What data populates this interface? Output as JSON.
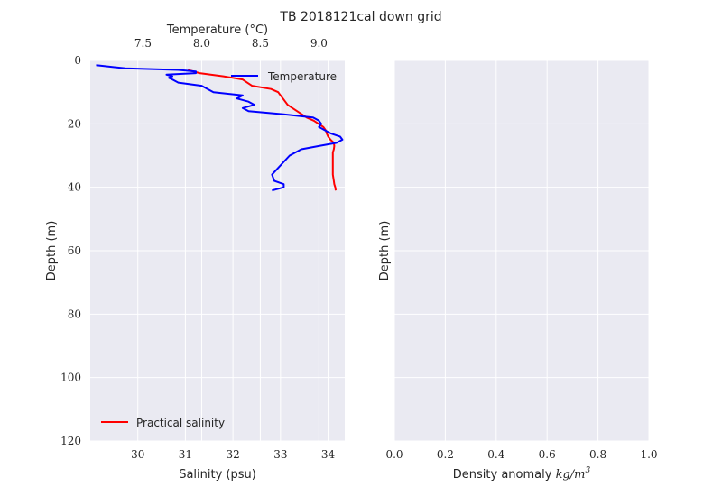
{
  "figure": {
    "suptitle": "TB 2018121cal down grid"
  },
  "chart_data": [
    {
      "type": "line",
      "panel": "left",
      "title": "",
      "ylabel": "Depth (m)",
      "y_inverted": true,
      "ylim": [
        0,
        120
      ],
      "yticks": [
        "0",
        "20",
        "40",
        "60",
        "80",
        "100",
        "120"
      ],
      "grid": true,
      "bottom_axis": {
        "label": "Salinity (psu)",
        "lim": [
          29.0,
          34.35
        ],
        "ticks": [
          "30",
          "31",
          "32",
          "33",
          "34"
        ]
      },
      "top_axis": {
        "label": "Temperature (°C)",
        "lim": [
          7.05,
          9.22
        ],
        "ticks": [
          "7.5",
          "8.0",
          "8.5",
          "9.0"
        ]
      },
      "series": [
        {
          "name": "Practical salinity",
          "axis": "bottom",
          "color": "#ff0000",
          "legend_position": "lower-left",
          "depth": [
            3,
            4,
            5,
            6,
            7,
            8,
            9,
            10,
            11,
            12,
            13,
            14,
            15,
            16,
            17,
            18,
            19,
            20,
            21,
            22,
            23,
            24,
            25,
            26,
            27,
            28,
            29,
            30,
            32,
            34,
            36,
            38,
            39,
            40,
            41
          ],
          "values": [
            31.05,
            31.3,
            31.8,
            32.2,
            32.3,
            32.4,
            32.8,
            32.95,
            33.0,
            33.05,
            33.1,
            33.15,
            33.25,
            33.35,
            33.45,
            33.55,
            33.7,
            33.8,
            33.9,
            33.95,
            33.97,
            34.0,
            34.05,
            34.12,
            34.13,
            34.12,
            34.1,
            34.1,
            34.1,
            34.1,
            34.1,
            34.12,
            34.13,
            34.15,
            34.16
          ]
        },
        {
          "name": "Temperature",
          "axis": "top",
          "color": "#0000ff",
          "legend_position": "upper-right",
          "depth": [
            1.5,
            2.5,
            3,
            3.5,
            4,
            4.5,
            5,
            5.5,
            6,
            7,
            8,
            9,
            10,
            11,
            12,
            13,
            14,
            15,
            16,
            17,
            18,
            19,
            20,
            21,
            22,
            23,
            24,
            25,
            26,
            27,
            28,
            29,
            30,
            32,
            34,
            36,
            38,
            39,
            40,
            41
          ],
          "values": [
            7.1,
            7.35,
            7.8,
            7.95,
            7.95,
            7.7,
            7.75,
            7.72,
            7.75,
            7.8,
            8.0,
            8.05,
            8.1,
            8.35,
            8.3,
            8.4,
            8.45,
            8.35,
            8.4,
            8.7,
            8.95,
            9.0,
            9.02,
            9.0,
            9.05,
            9.1,
            9.18,
            9.2,
            9.15,
            9.0,
            8.85,
            8.8,
            8.75,
            8.7,
            8.65,
            8.6,
            8.62,
            8.7,
            8.7,
            8.6
          ]
        }
      ]
    },
    {
      "type": "line",
      "panel": "right",
      "title": "",
      "ylabel": "Depth (m)",
      "xlabel": "Density anomaly kg/m³",
      "xlabel_text": "Density anomaly ",
      "xlabel_math": "kg/m",
      "xlabel_sup": "3",
      "xlim": [
        0.0,
        1.0
      ],
      "xticks": [
        "0.0",
        "0.2",
        "0.4",
        "0.6",
        "0.8",
        "1.0"
      ],
      "ylim": [
        0,
        120
      ],
      "y_inverted": true,
      "grid": true,
      "series": []
    }
  ]
}
